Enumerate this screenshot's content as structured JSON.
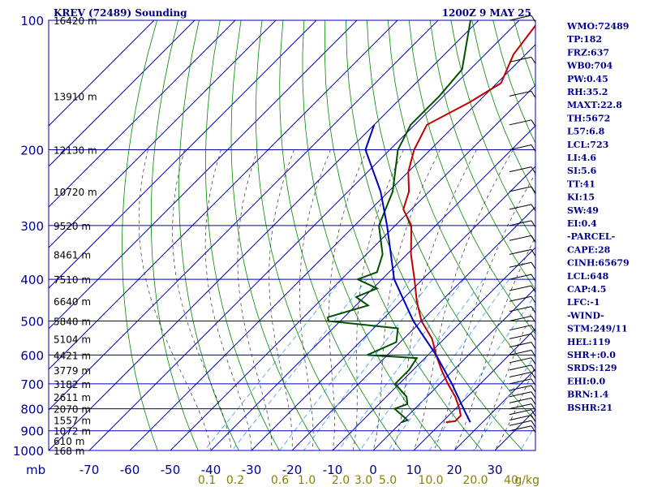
{
  "header": {
    "title": "KREV (72489) Sounding",
    "time": "1200Z  9 MAY 25"
  },
  "colors": {
    "background": "#ffffff",
    "grid": "#0000aa",
    "text": "#00008b",
    "temperature": "#c00000",
    "dewpoint": "#005000",
    "parcel": "#0000c0",
    "dry_adiabat": "#008800",
    "moist_adiabat": "#303030",
    "mixing_ratio": "#3399ff",
    "mixing_label": "#8b8000"
  },
  "indices": [
    "WMO:72489",
    "TP:182",
    "FRZ:637",
    "WB0:704",
    "PW:0.45",
    "RH:35.2",
    "MAXT:22.8",
    "TH:5672",
    "L57:6.8",
    "LCL:723",
    "LI:4.6",
    "SI:5.6",
    "TT:41",
    "KI:15",
    "SW:49",
    "EI:0.4",
    "-PARCEL-",
    "CAPE:28",
    "CINH:65679",
    "LCL:648",
    "CAP:4.5",
    "LFC:-1",
    "-WIND-",
    "STM:249/11",
    "HEL:119",
    "SHR+:0.0",
    "SRDS:129",
    "EHI:0.0",
    "BRN:1.4",
    "BSHR:21"
  ],
  "chart_data": {
    "type": "line",
    "title": "KREV (72489) Sounding",
    "xlabel": "",
    "ylabel": "mb",
    "xlim": [
      -80,
      40
    ],
    "ylim": [
      1000,
      100
    ],
    "y_scale": "log",
    "grid": true,
    "pressure_ticks": [
      100,
      200,
      300,
      400,
      500,
      600,
      700,
      800,
      900,
      1000
    ],
    "temperature_ticks": [
      -70,
      -60,
      -50,
      -40,
      -30,
      -20,
      -10,
      0,
      10,
      20,
      30
    ],
    "mixing_ratio_labels": [
      "0.1",
      "0.2",
      "0.6",
      "1.0",
      "2.0",
      "3.0",
      "5.0",
      "10.0",
      "20.0",
      "40"
    ],
    "mixing_ratio_unit": "g/kg",
    "height_labels": [
      {
        "p": 100,
        "label": "16420 m"
      },
      {
        "p": 150,
        "label": "13910 m"
      },
      {
        "p": 200,
        "label": "12130 m"
      },
      {
        "p": 250,
        "label": "10720 m"
      },
      {
        "p": 300,
        "label": "9520 m"
      },
      {
        "p": 350,
        "label": "8461 m"
      },
      {
        "p": 400,
        "label": "7510 m"
      },
      {
        "p": 450,
        "label": "6640 m"
      },
      {
        "p": 500,
        "label": "5840 m"
      },
      {
        "p": 550,
        "label": "5104 m"
      },
      {
        "p": 600,
        "label": "4421 m"
      },
      {
        "p": 650,
        "label": "3779 m"
      },
      {
        "p": 700,
        "label": "3182 m"
      },
      {
        "p": 750,
        "label": "2611 m"
      },
      {
        "p": 800,
        "label": "2070 m"
      },
      {
        "p": 850,
        "label": "1557 m"
      },
      {
        "p": 900,
        "label": "1072 m"
      },
      {
        "p": 950,
        "label": "610 m"
      },
      {
        "p": 1000,
        "label": "168 m"
      }
    ],
    "series": [
      {
        "key": "temperature",
        "points": [
          [
            100,
            -65
          ],
          [
            120,
            -63
          ],
          [
            140,
            -59
          ],
          [
            155,
            -62
          ],
          [
            175,
            -67
          ],
          [
            200,
            -64
          ],
          [
            225,
            -60
          ],
          [
            250,
            -55
          ],
          [
            275,
            -52
          ],
          [
            300,
            -46
          ],
          [
            350,
            -39
          ],
          [
            400,
            -32
          ],
          [
            450,
            -26
          ],
          [
            500,
            -20
          ],
          [
            550,
            -13
          ],
          [
            600,
            -8
          ],
          [
            650,
            -3
          ],
          [
            700,
            2
          ],
          [
            750,
            7
          ],
          [
            800,
            11
          ],
          [
            830,
            13
          ],
          [
            855,
            13
          ],
          [
            860,
            11
          ]
        ]
      },
      {
        "key": "dewpoint",
        "points": [
          [
            100,
            -82
          ],
          [
            130,
            -72
          ],
          [
            150,
            -71
          ],
          [
            175,
            -71
          ],
          [
            200,
            -68
          ],
          [
            250,
            -59
          ],
          [
            300,
            -54
          ],
          [
            350,
            -46
          ],
          [
            385,
            -43
          ],
          [
            400,
            -46
          ],
          [
            420,
            -39
          ],
          [
            440,
            -42
          ],
          [
            460,
            -37
          ],
          [
            490,
            -44
          ],
          [
            500,
            -43
          ],
          [
            520,
            -24
          ],
          [
            560,
            -21
          ],
          [
            600,
            -25
          ],
          [
            610,
            -12
          ],
          [
            650,
            -11
          ],
          [
            700,
            -11
          ],
          [
            750,
            -5
          ],
          [
            780,
            -3
          ],
          [
            800,
            -5
          ],
          [
            850,
            1
          ],
          [
            860,
            0
          ]
        ]
      },
      {
        "key": "parcel",
        "points": [
          [
            175,
            -80
          ],
          [
            200,
            -76
          ],
          [
            250,
            -62
          ],
          [
            300,
            -52
          ],
          [
            400,
            -37
          ],
          [
            500,
            -22
          ],
          [
            600,
            -8
          ],
          [
            700,
            3
          ],
          [
            800,
            12
          ],
          [
            860,
            17
          ]
        ]
      }
    ]
  }
}
